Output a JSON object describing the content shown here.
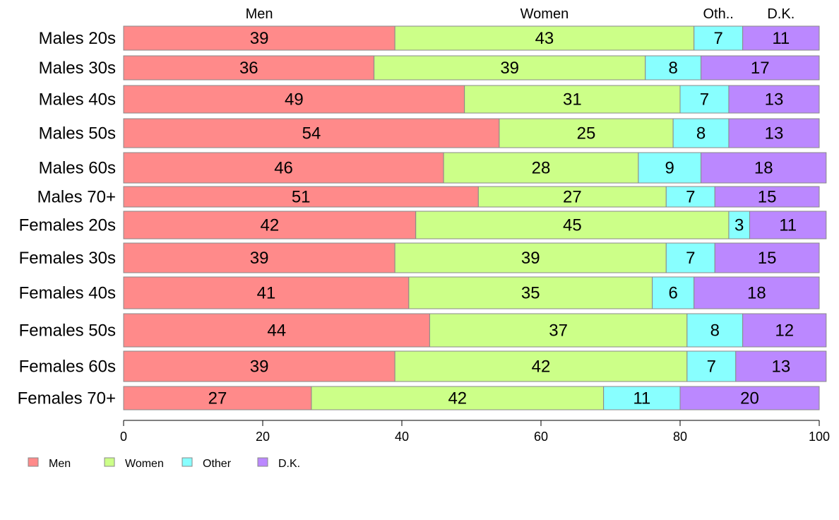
{
  "chart_data": {
    "type": "bar",
    "orientation": "horizontal",
    "stacked": true,
    "categories": [
      "Males 20s",
      "Males 30s",
      "Males 40s",
      "Males 50s",
      "Males 60s",
      "Males 70+",
      "Females 20s",
      "Females 30s",
      "Females 40s",
      "Females 50s",
      "Females 60s",
      "Females 70+"
    ],
    "series": [
      {
        "name": "Men",
        "color": "#ff8a8a",
        "values": [
          39,
          36,
          49,
          54,
          46,
          51,
          42,
          39,
          41,
          44,
          39,
          27
        ]
      },
      {
        "name": "Women",
        "color": "#ccff88",
        "values": [
          43,
          39,
          31,
          25,
          28,
          27,
          45,
          39,
          35,
          37,
          42,
          42
        ]
      },
      {
        "name": "Other",
        "color": "#88ffff",
        "values": [
          7,
          8,
          7,
          8,
          9,
          7,
          3,
          7,
          6,
          8,
          7,
          11
        ]
      },
      {
        "name": "D.K.",
        "color": "#bb88ff",
        "values": [
          11,
          17,
          13,
          13,
          18,
          15,
          11,
          15,
          18,
          12,
          13,
          20
        ]
      }
    ],
    "column_headers": [
      "Men",
      "Women",
      "Oth..",
      "D.K."
    ],
    "xlim": [
      0,
      100
    ],
    "x_ticks": [
      0,
      20,
      40,
      60,
      80,
      100
    ],
    "legend_position": "bottom-left",
    "grid": false
  }
}
